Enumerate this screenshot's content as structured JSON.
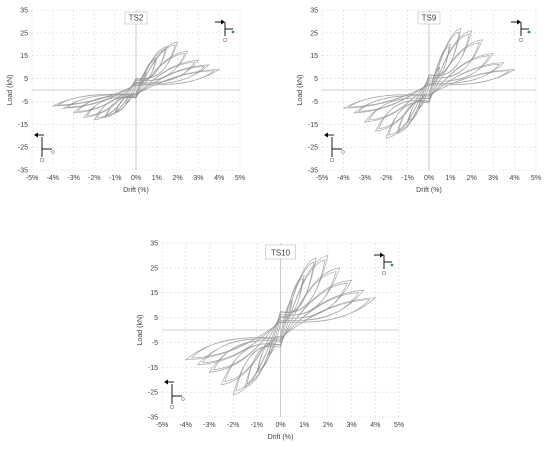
{
  "figure": {
    "colors": {
      "curve": "#8c8c8c",
      "grid": "#d9d9d9",
      "text": "#404040",
      "arrow": "#000000"
    }
  },
  "chart_data": [
    {
      "type": "line",
      "title": "TS2",
      "xlabel": "Drift (%)",
      "ylabel": "Load (kN)",
      "xlim": [
        -5,
        5
      ],
      "ylim": [
        -35,
        35
      ],
      "x_ticks": [
        "-5%",
        "-4%",
        "-3%",
        "-2%",
        "-1%",
        "0%",
        "1%",
        "2%",
        "3%",
        "4%",
        "5%"
      ],
      "y_ticks": [
        "35",
        "25",
        "15",
        "5",
        "-5",
        "-15",
        "-25",
        "-35"
      ],
      "grid": true,
      "series": [
        {
          "drift_pct": 0.5,
          "load_pos_kN": 8,
          "load_neg_kN": -6
        },
        {
          "drift_pct": 1.0,
          "load_pos_kN": 14,
          "load_neg_kN": -10
        },
        {
          "drift_pct": 1.5,
          "load_pos_kN": 19,
          "load_neg_kN": -12
        },
        {
          "drift_pct": 2.0,
          "load_pos_kN": 21,
          "load_neg_kN": -13
        },
        {
          "drift_pct": 2.5,
          "load_pos_kN": 17,
          "load_neg_kN": -12
        },
        {
          "drift_pct": 3.0,
          "load_pos_kN": 13,
          "load_neg_kN": -10
        },
        {
          "drift_pct": 3.5,
          "load_pos_kN": 11,
          "load_neg_kN": -8
        },
        {
          "drift_pct": 4.0,
          "load_pos_kN": 9,
          "load_neg_kN": -7
        }
      ]
    },
    {
      "type": "line",
      "title": "TS9",
      "xlabel": "Drift (%)",
      "ylabel": "Load (kN)",
      "xlim": [
        -5,
        5
      ],
      "ylim": [
        -35,
        35
      ],
      "x_ticks": [
        "-5%",
        "-4%",
        "-3%",
        "-2%",
        "-1%",
        "0%",
        "1%",
        "2%",
        "3%",
        "4%",
        "5%"
      ],
      "y_ticks": [
        "35",
        "25",
        "15",
        "5",
        "-5",
        "-15",
        "-25",
        "-35"
      ],
      "grid": true,
      "series": [
        {
          "drift_pct": 0.5,
          "load_pos_kN": 10,
          "load_neg_kN": -8
        },
        {
          "drift_pct": 1.0,
          "load_pos_kN": 20,
          "load_neg_kN": -14
        },
        {
          "drift_pct": 1.5,
          "load_pos_kN": 27,
          "load_neg_kN": -19
        },
        {
          "drift_pct": 2.0,
          "load_pos_kN": 26,
          "load_neg_kN": -21
        },
        {
          "drift_pct": 2.5,
          "load_pos_kN": 22,
          "load_neg_kN": -18
        },
        {
          "drift_pct": 3.0,
          "load_pos_kN": 16,
          "load_neg_kN": -14
        },
        {
          "drift_pct": 3.5,
          "load_pos_kN": 12,
          "load_neg_kN": -10
        },
        {
          "drift_pct": 4.0,
          "load_pos_kN": 9,
          "load_neg_kN": -8
        }
      ]
    },
    {
      "type": "line",
      "title": "TS10",
      "xlabel": "Drift (%)",
      "ylabel": "Load (kN)",
      "xlim": [
        -5,
        5
      ],
      "ylim": [
        -35,
        35
      ],
      "x_ticks": [
        "-5%",
        "-4%",
        "-3%",
        "-2%",
        "-1%",
        "0%",
        "1%",
        "2%",
        "3%",
        "4%",
        "5%"
      ],
      "y_ticks": [
        "35",
        "25",
        "15",
        "5",
        "-5",
        "-15",
        "-25",
        "-35"
      ],
      "grid": true,
      "series": [
        {
          "drift_pct": 0.5,
          "load_pos_kN": 12,
          "load_neg_kN": -10
        },
        {
          "drift_pct": 1.0,
          "load_pos_kN": 22,
          "load_neg_kN": -17
        },
        {
          "drift_pct": 1.5,
          "load_pos_kN": 29,
          "load_neg_kN": -23
        },
        {
          "drift_pct": 2.0,
          "load_pos_kN": 30,
          "load_neg_kN": -26
        },
        {
          "drift_pct": 2.5,
          "load_pos_kN": 25,
          "load_neg_kN": -22
        },
        {
          "drift_pct": 3.0,
          "load_pos_kN": 20,
          "load_neg_kN": -17
        },
        {
          "drift_pct": 3.5,
          "load_pos_kN": 16,
          "load_neg_kN": -14
        },
        {
          "drift_pct": 4.0,
          "load_pos_kN": 13,
          "load_neg_kN": -12
        }
      ]
    }
  ]
}
